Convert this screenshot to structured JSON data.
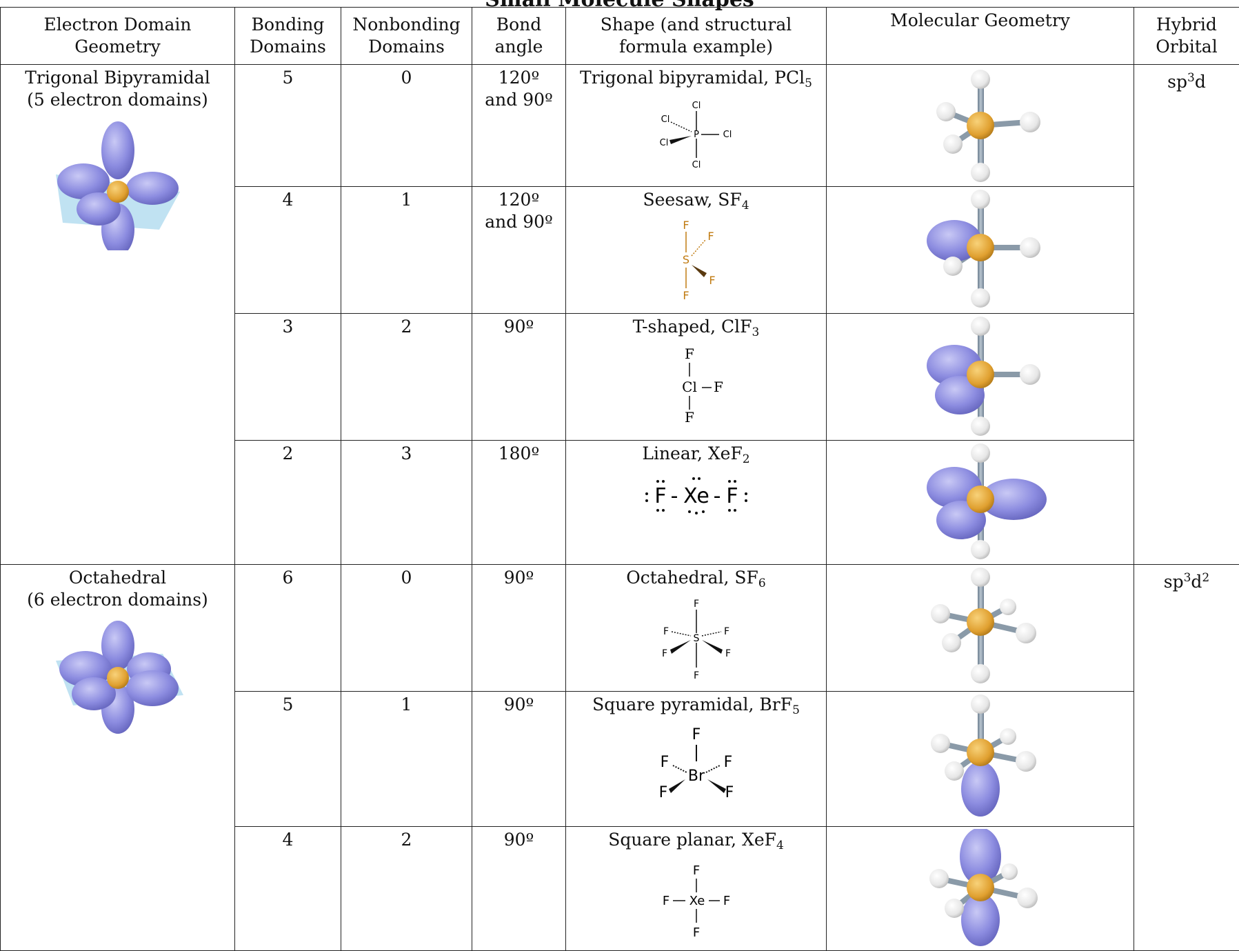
{
  "title": "Small Molecule Shapes",
  "headers": {
    "edg": [
      "Electron Domain",
      "Geometry"
    ],
    "bonding": [
      "Bonding",
      "Domains"
    ],
    "nonbonding": [
      "Nonbonding",
      "Domains"
    ],
    "angle": [
      "Bond",
      "angle"
    ],
    "shape": [
      "Shape (and structural",
      "formula example)"
    ],
    "molgeo": "Molecular Geometry",
    "hybrid": [
      "Hybrid",
      "Orbital"
    ]
  },
  "groups": [
    {
      "edg": [
        "Trigonal Bipyramidal",
        "(5 electron domains)"
      ],
      "hybrid_base": "sp",
      "hybrid_sup": "3",
      "hybrid_tail": "d",
      "hybrid_sup2": "",
      "rows": [
        {
          "bonding": "5",
          "nonbonding": "0",
          "angle": [
            "120º",
            "and 90º"
          ],
          "shape": "Trigonal bipyramidal, PCl",
          "sub": "5"
        },
        {
          "bonding": "4",
          "nonbonding": "1",
          "angle": [
            "120º",
            "and 90º"
          ],
          "shape": "Seesaw, SF",
          "sub": "4"
        },
        {
          "bonding": "3",
          "nonbonding": "2",
          "angle": [
            "90º"
          ],
          "shape": "T-shaped, ClF",
          "sub": "3"
        },
        {
          "bonding": "2",
          "nonbonding": "3",
          "angle": [
            "180º"
          ],
          "shape": "Linear, XeF",
          "sub": "2"
        }
      ]
    },
    {
      "edg": [
        "Octahedral",
        "(6 electron domains)"
      ],
      "hybrid_base": "sp",
      "hybrid_sup": "3",
      "hybrid_tail": "d",
      "hybrid_sup2": "2",
      "rows": [
        {
          "bonding": "6",
          "nonbonding": "0",
          "angle": [
            "90º"
          ],
          "shape": "Octahedral, SF",
          "sub": "6"
        },
        {
          "bonding": "5",
          "nonbonding": "1",
          "angle": [
            "90º"
          ],
          "shape": "Square pyramidal, BrF",
          "sub": "5"
        },
        {
          "bonding": "4",
          "nonbonding": "2",
          "angle": [
            "90º"
          ],
          "shape": "Square planar, XeF",
          "sub": "4"
        }
      ]
    }
  ],
  "lewis": {
    "pcl5": {
      "center": "P",
      "atom": "Cl"
    },
    "sf4": {
      "center": "S",
      "atom": "F"
    },
    "clf3": {
      "center": "Cl",
      "atom": "F"
    },
    "xef2": {
      "center": "Xe",
      "atom": "F"
    },
    "sf6": {
      "center": "S",
      "atom": "F"
    },
    "brf5": {
      "center": "Br",
      "atom": "F"
    },
    "xef4": {
      "center": "Xe",
      "atom": "F"
    }
  },
  "colors": {
    "lobe": "#8f8fe0",
    "lobe_dark": "#6b6bc4",
    "center": "#e0a030",
    "ligand": "#eeeeee",
    "bond": "#8a9aa8",
    "plane": "#8ccbe8",
    "sf4_text": "#c07a10"
  }
}
